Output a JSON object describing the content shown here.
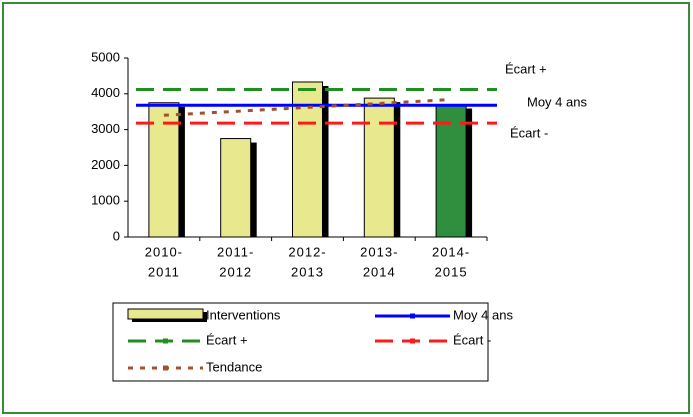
{
  "chart_data": {
    "type": "bar",
    "categories": [
      [
        "2010-",
        "2011"
      ],
      [
        "2011-",
        "2012"
      ],
      [
        "2012-",
        "2013"
      ],
      [
        "2013-",
        "2014"
      ],
      [
        "2014-",
        "2015"
      ]
    ],
    "ylim": [
      0,
      5000
    ],
    "yticks": [
      0,
      1000,
      2000,
      3000,
      4000,
      5000
    ],
    "grid": false,
    "series": [
      {
        "name": "Interventions",
        "type": "bar",
        "colors": [
          "#e8e88f",
          "#e8e88f",
          "#e8e88f",
          "#e8e88f",
          "#2f8f3f"
        ],
        "values": [
          3750,
          2750,
          4330,
          3880,
          3700
        ]
      },
      {
        "name": "Moy 4 ans",
        "type": "hline",
        "color": "#0000ff",
        "dash": "none",
        "value": 3680
      },
      {
        "name": "Écart +",
        "type": "hline",
        "color": "#1f8f1f",
        "dash": "18 9",
        "value": 4120
      },
      {
        "name": "Écart -",
        "type": "hline",
        "color": "#ff1a1a",
        "dash": "18 9",
        "value": 3180
      },
      {
        "name": "Tendance",
        "type": "line",
        "color": "#a0522d",
        "dash": "5 7",
        "values": [
          3400,
          3510,
          3620,
          3730,
          3840
        ]
      }
    ]
  }
}
